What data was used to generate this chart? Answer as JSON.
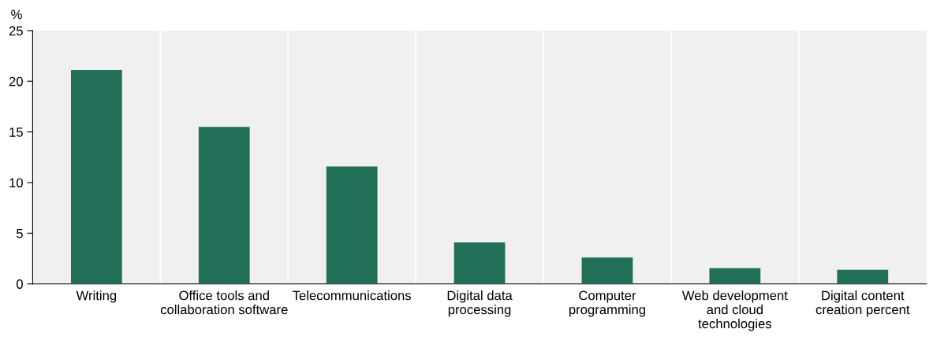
{
  "chart_data": {
    "type": "bar",
    "ylabel": "%",
    "categories": [
      "Writing",
      "Office tools and\ncollaboration software",
      "Telecommunications",
      "Digital data\nprocessing",
      "Computer\nprogramming",
      "Web development\nand cloud\ntechnologies",
      "Digital content\ncreation percent"
    ],
    "values": [
      21.1,
      15.5,
      11.6,
      4.1,
      2.6,
      1.55,
      1.4
    ],
    "color": "#216e59",
    "ylim": [
      0,
      25
    ],
    "yticks": [
      0,
      5,
      10,
      15,
      20,
      25
    ],
    "grid": "x"
  }
}
